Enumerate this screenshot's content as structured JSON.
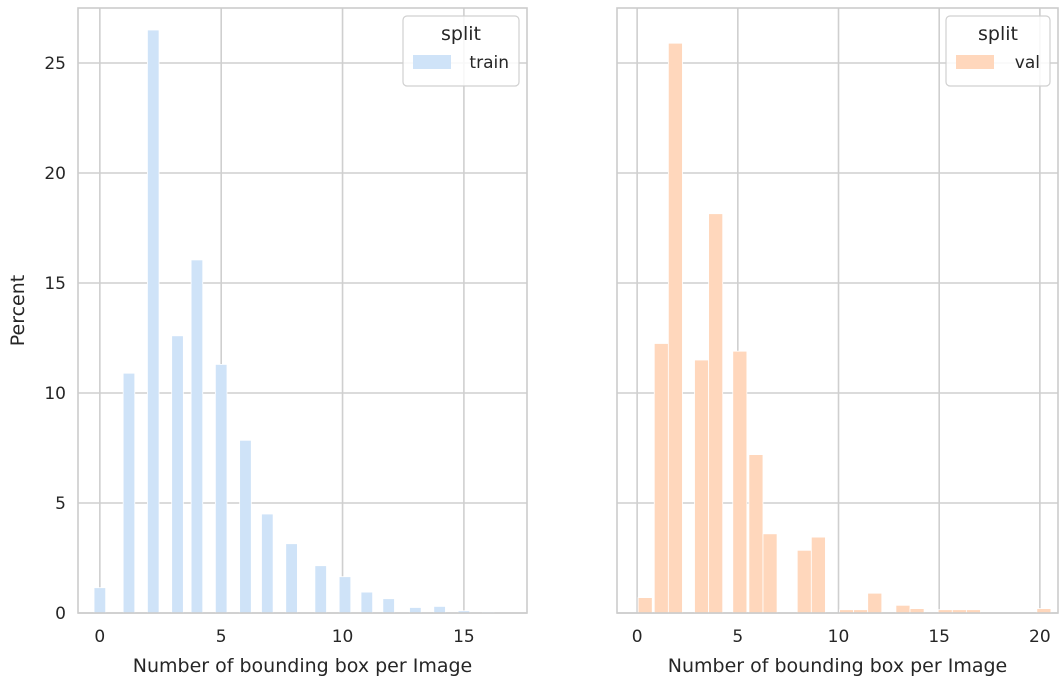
{
  "chart_data": [
    {
      "type": "bar",
      "panel": "left",
      "xlabel": "Number of bounding box per Image",
      "ylabel": "Percent",
      "xlim": [
        -0.9,
        17.6
      ],
      "ylim": [
        0,
        27.5
      ],
      "xticks": [
        0,
        5,
        10,
        15
      ],
      "yticks": [
        0,
        5,
        10,
        15,
        20,
        25
      ],
      "grid": true,
      "legend": {
        "title": "split",
        "placement": "top-right",
        "items": [
          {
            "label": "train",
            "color": "#cfe3f8"
          }
        ]
      },
      "bin_width": 0.48,
      "series": [
        {
          "name": "train",
          "color": "#cfe3f8",
          "x": [
            0,
            1.2,
            2.2,
            3.2,
            4.0,
            5.0,
            6.0,
            6.9,
            7.9,
            9.1,
            10.1,
            11.0,
            11.9,
            13.0,
            14.0,
            15.0,
            16.0
          ],
          "values": [
            1.15,
            10.9,
            26.5,
            12.6,
            16.05,
            11.3,
            7.85,
            4.5,
            3.15,
            2.15,
            1.65,
            0.95,
            0.65,
            0.25,
            0.3,
            0.1,
            0.05
          ]
        }
      ]
    },
    {
      "type": "bar",
      "panel": "right",
      "xlabel": "Number of bounding box per Image",
      "ylabel": "",
      "xlim": [
        -1.0,
        20.9
      ],
      "ylim": [
        0,
        27.5
      ],
      "xticks": [
        0,
        5,
        10,
        15,
        20
      ],
      "yticks": [
        0,
        5,
        10,
        15,
        20,
        25
      ],
      "grid": true,
      "legend": {
        "title": "split",
        "placement": "top-right",
        "items": [
          {
            "label": "val",
            "color": "#ffd7bc"
          }
        ]
      },
      "bin_width": 0.7,
      "series": [
        {
          "name": "val",
          "color": "#ffd7bc",
          "x": [
            0.4,
            1.2,
            1.9,
            3.2,
            3.9,
            5.1,
            5.9,
            6.6,
            8.3,
            9.0,
            10.4,
            11.1,
            11.8,
            13.2,
            13.9,
            15.3,
            16.0,
            16.7,
            20.2
          ],
          "values": [
            0.7,
            12.25,
            25.9,
            11.5,
            18.15,
            11.9,
            7.2,
            3.6,
            2.85,
            3.45,
            0.15,
            0.15,
            0.9,
            0.35,
            0.2,
            0.15,
            0.15,
            0.15,
            0.2
          ]
        }
      ]
    }
  ]
}
